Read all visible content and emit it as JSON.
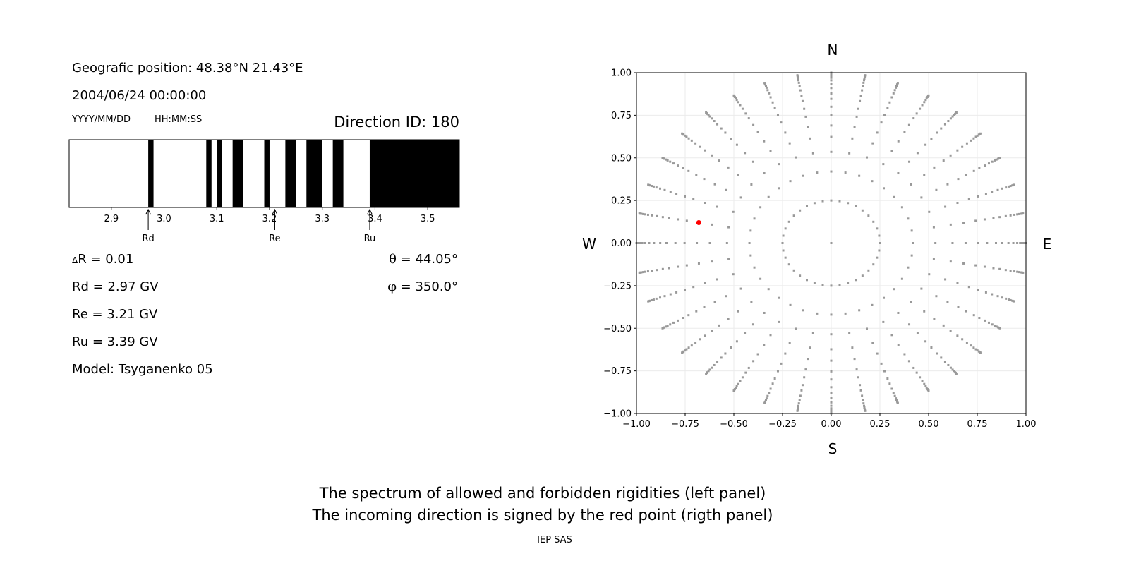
{
  "info": {
    "position": "Geografic position: 48.38°N 21.43°E",
    "datetime": "2004/06/24 00:00:00",
    "date_format": "YYYY/MM/DD",
    "time_format": "HH:MM:SS",
    "direction_id": "Direction ID: 180",
    "delta_r_symbol": "Δ",
    "delta_r": "R = 0.01",
    "rd": "Rd = 2.97 GV",
    "re": "Re = 3.21 GV",
    "ru": "Ru = 3.39 GV",
    "model": "Model: Tsyganenko 05",
    "theta_symbol": "θ",
    "theta": " = 44.05°",
    "phi_symbol": "φ",
    "phi": " = 350.0°"
  },
  "captions": {
    "line1": "The spectrum of allowed and forbidden rigidities (left panel)",
    "line2": "The incoming direction is signed by the red point (rigth panel)",
    "credit": "IEP SAS"
  },
  "chart_data": [
    {
      "type": "bar",
      "description_kind": "rigidity spectrum",
      "xlim": [
        2.82,
        3.56
      ],
      "xticks": [
        "2.9",
        "3.0",
        "3.1",
        "3.2",
        "3.3",
        "3.4",
        "3.5"
      ],
      "forbidden_bands": [
        [
          2.97,
          2.98
        ],
        [
          3.08,
          3.09
        ],
        [
          3.1,
          3.11
        ],
        [
          3.13,
          3.15
        ],
        [
          3.19,
          3.2
        ],
        [
          3.23,
          3.25
        ],
        [
          3.27,
          3.3
        ],
        [
          3.32,
          3.34
        ],
        [
          3.39,
          3.56
        ]
      ],
      "markers": [
        {
          "label": "Rd",
          "value": 2.97
        },
        {
          "label": "Re",
          "value": 3.21
        },
        {
          "label": "Ru",
          "value": 3.39
        }
      ],
      "colors": {
        "forbidden": "#000000",
        "allowed": "#ffffff"
      }
    },
    {
      "type": "scatter",
      "xlim": [
        -1,
        1
      ],
      "ylim": [
        -1,
        1
      ],
      "ticks": [
        "−1.00",
        "−0.75",
        "−0.50",
        "−0.25",
        "0.00",
        "0.25",
        "0.50",
        "0.75",
        "1.00"
      ],
      "grid": true,
      "directions": {
        "north": "N",
        "south": "S",
        "east": "E",
        "west": "W"
      },
      "grid_points": {
        "azimuth_step_deg": 10,
        "radii": [
          0.25,
          0.42,
          0.535,
          0.623,
          0.69,
          0.753,
          0.8,
          0.846,
          0.878,
          0.91,
          0.935,
          0.955,
          0.97,
          0.98,
          0.99,
          0.995,
          1.0
        ],
        "center": [
          0,
          0
        ],
        "color": "#999999"
      },
      "highlight_point": {
        "x": -0.68,
        "y": 0.12,
        "color": "#ff0000"
      }
    }
  ]
}
